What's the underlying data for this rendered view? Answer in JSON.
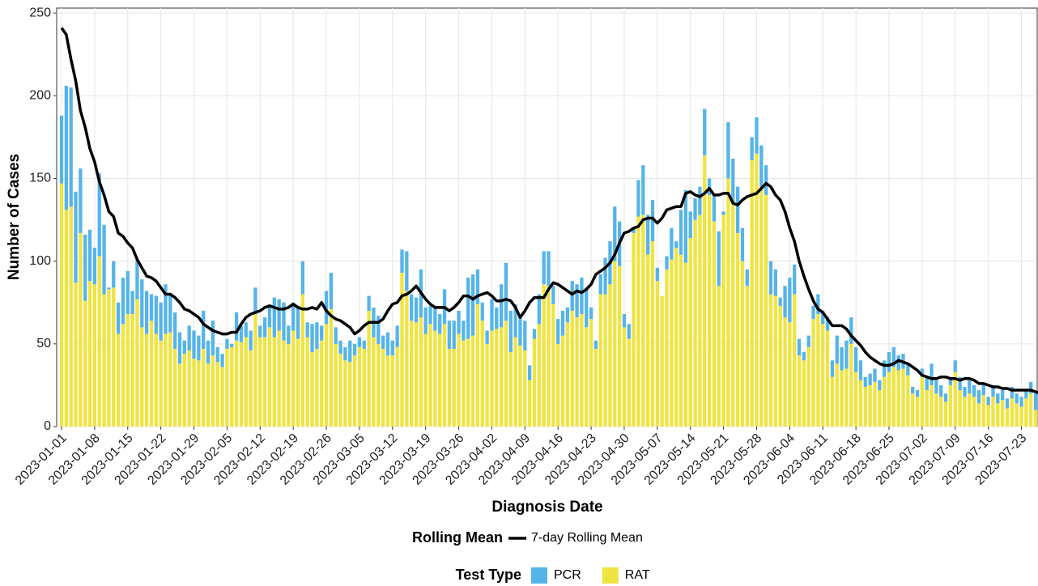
{
  "chart_data": {
    "type": "bar",
    "stacked": true,
    "x_label": "Diagnosis Date",
    "y_label": "Number of Cases",
    "ylim": [
      0,
      253
    ],
    "yticks": [
      0,
      50,
      100,
      150,
      200,
      250
    ],
    "grid": true,
    "bar_legend_title": "Test Type",
    "line_legend_title": "Rolling Mean",
    "categories": [
      "2023-01-01",
      null,
      null,
      null,
      null,
      null,
      null,
      "2023-01-08",
      null,
      null,
      null,
      null,
      null,
      null,
      "2023-01-15",
      null,
      null,
      null,
      null,
      null,
      null,
      "2023-01-22",
      null,
      null,
      null,
      null,
      null,
      null,
      "2023-01-29",
      null,
      null,
      null,
      null,
      null,
      null,
      "2023-02-05",
      null,
      null,
      null,
      null,
      null,
      null,
      "2023-02-12",
      null,
      null,
      null,
      null,
      null,
      null,
      "2023-02-19",
      null,
      null,
      null,
      null,
      null,
      null,
      "2023-02-26",
      null,
      null,
      null,
      null,
      null,
      null,
      "2023-03-05",
      null,
      null,
      null,
      null,
      null,
      null,
      "2023-03-12",
      null,
      null,
      null,
      null,
      null,
      null,
      "2023-03-19",
      null,
      null,
      null,
      null,
      null,
      null,
      "2023-03-26",
      null,
      null,
      null,
      null,
      null,
      null,
      "2023-04-02",
      null,
      null,
      null,
      null,
      null,
      null,
      "2023-04-09",
      null,
      null,
      null,
      null,
      null,
      null,
      "2023-04-16",
      null,
      null,
      null,
      null,
      null,
      null,
      "2023-04-23",
      null,
      null,
      null,
      null,
      null,
      null,
      "2023-04-30",
      null,
      null,
      null,
      null,
      null,
      null,
      "2023-05-07",
      null,
      null,
      null,
      null,
      null,
      null,
      "2023-05-14",
      null,
      null,
      null,
      null,
      null,
      null,
      "2023-05-21",
      null,
      null,
      null,
      null,
      null,
      null,
      "2023-05-28",
      null,
      null,
      null,
      null,
      null,
      null,
      "2023-06-04",
      null,
      null,
      null,
      null,
      null,
      null,
      "2023-06-11",
      null,
      null,
      null,
      null,
      null,
      null,
      "2023-06-18",
      null,
      null,
      null,
      null,
      null,
      null,
      "2023-06-25",
      null,
      null,
      null,
      null,
      null,
      null,
      "2023-07-02",
      null,
      null,
      null,
      null,
      null,
      null,
      "2023-07-09",
      null,
      null,
      null,
      null,
      null,
      null,
      "2023-07-16",
      null,
      null,
      null,
      null,
      null,
      null,
      "2023-07-23",
      null,
      null,
      null,
      null
    ],
    "series": [
      {
        "name": "PCR",
        "type": "bar",
        "color": "#56B4E9",
        "values": [
          41,
          75,
          72,
          55,
          39,
          40,
          31,
          22,
          50,
          42,
          1,
          16,
          19,
          28,
          26,
          14,
          24,
          29,
          26,
          16,
          23,
          23,
          30,
          23,
          22,
          19,
          8,
          15,
          17,
          15,
          23,
          14,
          21,
          9,
          8,
          6,
          2,
          17,
          10,
          9,
          12,
          16,
          7,
          12,
          13,
          24,
          19,
          23,
          11,
          17,
          20,
          20,
          9,
          17,
          16,
          9,
          20,
          22,
          10,
          8,
          8,
          13,
          7,
          6,
          5,
          9,
          18,
          17,
          8,
          14,
          9,
          13,
          14,
          24,
          16,
          15,
          29,
          16,
          11,
          14,
          12,
          21,
          17,
          17,
          14,
          12,
          37,
          37,
          21,
          11,
          8,
          19,
          13,
          26,
          35,
          25,
          20,
          18,
          18,
          9,
          6,
          18,
          20,
          21,
          11,
          15,
          15,
          9,
          18,
          20,
          22,
          24,
          7,
          5,
          12,
          22,
          26,
          33,
          27,
          8,
          9,
          3,
          22,
          30,
          24,
          25,
          8,
          0,
          8,
          19,
          4,
          27,
          44,
          16,
          13,
          17,
          28,
          10,
          16,
          33,
          2,
          34,
          27,
          28,
          20,
          10,
          14,
          22,
          25,
          18,
          20,
          16,
          5,
          19,
          27,
          18,
          10,
          5,
          7,
          8,
          12,
          8,
          8,
          10,
          17,
          14,
          17,
          16,
          15,
          12,
          6,
          7,
          8,
          6,
          10,
          12,
          12,
          9,
          9,
          7,
          4,
          4,
          5,
          8,
          13,
          8,
          7,
          5,
          5,
          7,
          8,
          6,
          8,
          7,
          8,
          7,
          5,
          7,
          6,
          6,
          6,
          7,
          6,
          6,
          5,
          7,
          10,
          2
        ]
      },
      {
        "name": "RAT",
        "type": "bar",
        "color": "#F0E442",
        "values": [
          147,
          131,
          133,
          87,
          117,
          76,
          88,
          86,
          103,
          80,
          83,
          84,
          56,
          62,
          68,
          68,
          77,
          60,
          56,
          64,
          56,
          52,
          56,
          57,
          47,
          38,
          44,
          46,
          41,
          40,
          47,
          38,
          43,
          39,
          36,
          47,
          48,
          52,
          51,
          54,
          46,
          68,
          54,
          54,
          60,
          54,
          58,
          52,
          50,
          58,
          53,
          80,
          54,
          45,
          47,
          52,
          62,
          71,
          50,
          44,
          40,
          39,
          43,
          48,
          47,
          70,
          54,
          50,
          47,
          43,
          43,
          48,
          93,
          82,
          64,
          63,
          66,
          56,
          62,
          58,
          56,
          62,
          47,
          47,
          56,
          52,
          53,
          55,
          74,
          64,
          50,
          58,
          59,
          60,
          64,
          45,
          54,
          49,
          46,
          28,
          53,
          62,
          86,
          85,
          74,
          50,
          55,
          63,
          70,
          66,
          68,
          60,
          65,
          47,
          80,
          80,
          86,
          100,
          97,
          60,
          53,
          117,
          127,
          128,
          104,
          112,
          88,
          79,
          95,
          101,
          108,
          104,
          99,
          114,
          125,
          128,
          164,
          140,
          124,
          85,
          128,
          150,
          135,
          117,
          100,
          85,
          161,
          165,
          145,
          140,
          80,
          79,
          73,
          66,
          63,
          80,
          43,
          40,
          48,
          65,
          68,
          62,
          58,
          30,
          38,
          34,
          35,
          50,
          33,
          28,
          24,
          25,
          27,
          22,
          30,
          33,
          36,
          34,
          35,
          31,
          20,
          18,
          30,
          22,
          25,
          20,
          18,
          15,
          25,
          33,
          22,
          18,
          20,
          18,
          14,
          19,
          13,
          18,
          14,
          16,
          11,
          17,
          14,
          12,
          17,
          20,
          10,
          6
        ]
      },
      {
        "name": "7-day Rolling Mean",
        "type": "line",
        "color": "#000000",
        "values": [
          241,
          237,
          222,
          209,
          191,
          181,
          168,
          160,
          148,
          140,
          130,
          127,
          117,
          115,
          111,
          108,
          101,
          96,
          91,
          90,
          88,
          84,
          80,
          80,
          78,
          75,
          71,
          70,
          68,
          66,
          62,
          60,
          58,
          57,
          56,
          56,
          57,
          57,
          62,
          66,
          68,
          69,
          70,
          72,
          73,
          72,
          71,
          71,
          72,
          74,
          72,
          71,
          71,
          72,
          71,
          75,
          70,
          67,
          65,
          64,
          62,
          60,
          56,
          58,
          61,
          63,
          63,
          63,
          65,
          70,
          74,
          75,
          79,
          80,
          82,
          85,
          81,
          77,
          74,
          72,
          72,
          72,
          70,
          72,
          75,
          79,
          79,
          77,
          79,
          80,
          81,
          79,
          76,
          76,
          77,
          76,
          72,
          66,
          70,
          75,
          78,
          78,
          78,
          83,
          87,
          86,
          84,
          82,
          80,
          82,
          81,
          83,
          86,
          92,
          94,
          96,
          99,
          104,
          111,
          117,
          118,
          120,
          121,
          125,
          126,
          126,
          123,
          126,
          131,
          132,
          133,
          133,
          141,
          142,
          140,
          139,
          141,
          144,
          140,
          140,
          141,
          141,
          135,
          134,
          137,
          139,
          140,
          141,
          144,
          147,
          145,
          140,
          137,
          130,
          120,
          112,
          100,
          91,
          83,
          76,
          71,
          69,
          65,
          61,
          61,
          61,
          59,
          55,
          52,
          49,
          45,
          42,
          40,
          38,
          37,
          37,
          38,
          40,
          39,
          38,
          36,
          34,
          31,
          30,
          29,
          29,
          30,
          30,
          29,
          29,
          28,
          29,
          29,
          28,
          26,
          26,
          25,
          24,
          24,
          23,
          23,
          22,
          22,
          22,
          22,
          22,
          21,
          20
        ]
      }
    ]
  }
}
